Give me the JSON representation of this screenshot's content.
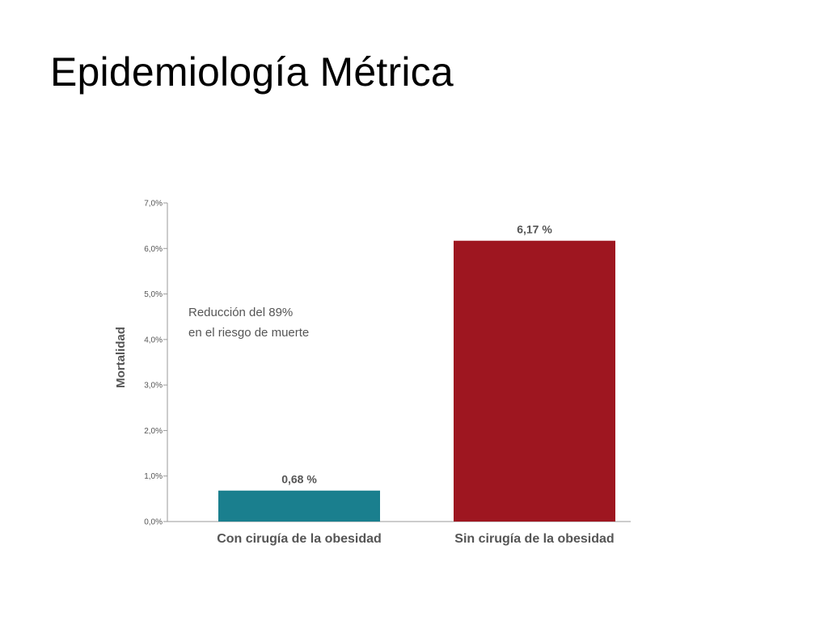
{
  "slide": {
    "title": "Epidemiología Métrica"
  },
  "chart_data": {
    "type": "bar",
    "categories": [
      "Con cirugía de la obesidad",
      "Sin cirugía de la obesidad"
    ],
    "values": [
      0.68,
      6.17
    ],
    "data_labels": [
      "0,68 %",
      "6,17 %"
    ],
    "colors": [
      "#1a7f8e",
      "#9e1620"
    ],
    "title": "",
    "xlabel": "",
    "ylabel": "Mortalidad",
    "ylim": [
      0,
      7
    ],
    "yticks": [
      0,
      1,
      2,
      3,
      4,
      5,
      6,
      7
    ],
    "ytick_labels": [
      "0,0%",
      "1,0%",
      "2,0%",
      "3,0%",
      "4,0%",
      "5,0%",
      "6,0%",
      "7,0%"
    ],
    "annotation": [
      "Reducción del 89%",
      "en el riesgo de muerte"
    ],
    "grid": false
  }
}
